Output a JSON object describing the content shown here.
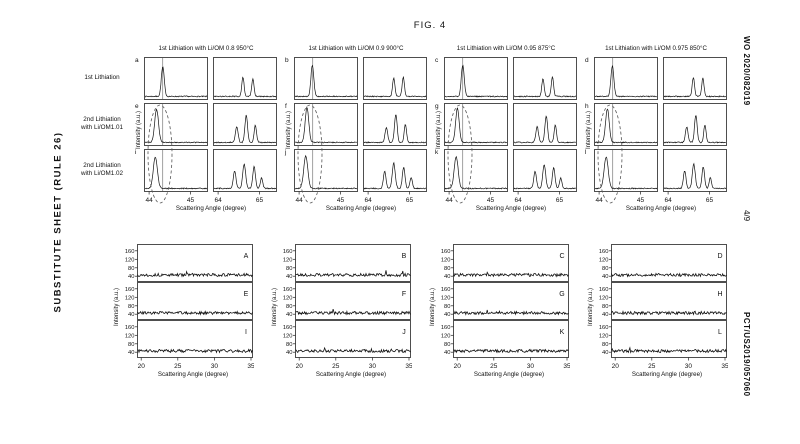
{
  "page": {
    "figure_label": "FIG. 4",
    "left_margin_text": "SUBSTITUTE SHEET (RULE 26)",
    "right_margin_top": "WO 2020/082019",
    "right_margin_middle": "4/9",
    "right_margin_bottom": "PCT/US2019/057060"
  },
  "chart_data": {
    "top": {
      "type": "line",
      "description": "XRD scattering patterns: 4 synthesis-condition groups, each with 3 lithiation rows and two angle windows (44-45 and 64-65 degrees). Dashed ellipse highlights shifted peak in 2nd lithiation rows.",
      "xlabel": "Scattering Angle (degree)",
      "ylabel": "Intensity (a.u.)",
      "row_labels": [
        "1st Lithiation",
        "2nd Lithiation with Li/OM1.01",
        "2nd Lithiation with Li/OM1.02"
      ],
      "left_xlim": [
        43.9,
        45.4
      ],
      "right_xlim": [
        63.9,
        65.4
      ],
      "left_xticks": [
        44,
        45
      ],
      "right_xticks": [
        64,
        65
      ],
      "ref_line_x": 44.33,
      "groups": [
        {
          "title": "1st Lithiation with Li/OM 0.8 950°C",
          "rows": [
            {
              "letter": "a",
              "left_peaks": [
                [
                  44.33,
                  0.85,
                  0.05
                ]
              ],
              "right_peaks": [
                [
                  64.6,
                  0.55,
                  0.04
                ],
                [
                  64.84,
                  0.5,
                  0.04
                ]
              ]
            },
            {
              "letter": "e",
              "left_peaks": [
                [
                  44.18,
                  0.95,
                  0.065
                ]
              ],
              "right_peaks": [
                [
                  64.45,
                  0.45,
                  0.045
                ],
                [
                  64.68,
                  0.78,
                  0.045
                ],
                [
                  64.9,
                  0.5,
                  0.04
                ]
              ]
            },
            {
              "letter": "i",
              "left_peaks": [
                [
                  44.15,
                  0.9,
                  0.07
                ]
              ],
              "right_peaks": [
                [
                  64.4,
                  0.5,
                  0.045
                ],
                [
                  64.63,
                  0.7,
                  0.05
                ],
                [
                  64.87,
                  0.62,
                  0.045
                ],
                [
                  65.05,
                  0.3,
                  0.04
                ]
              ]
            }
          ]
        },
        {
          "title": "1st Lithiation with Li/OM 0.9 900°C",
          "rows": [
            {
              "letter": "b",
              "left_peaks": [
                [
                  44.32,
                  0.88,
                  0.05
                ]
              ],
              "right_peaks": [
                [
                  64.62,
                  0.52,
                  0.04
                ],
                [
                  64.85,
                  0.55,
                  0.04
                ]
              ]
            },
            {
              "letter": "f",
              "left_peaks": [
                [
                  44.19,
                  1.0,
                  0.06
                ]
              ],
              "right_peaks": [
                [
                  64.44,
                  0.42,
                  0.045
                ],
                [
                  64.67,
                  0.8,
                  0.045
                ],
                [
                  64.9,
                  0.52,
                  0.04
                ]
              ]
            },
            {
              "letter": "j",
              "left_peaks": [
                [
                  44.16,
                  0.92,
                  0.07
                ]
              ],
              "right_peaks": [
                [
                  64.4,
                  0.48,
                  0.045
                ],
                [
                  64.62,
                  0.72,
                  0.05
                ],
                [
                  64.86,
                  0.6,
                  0.045
                ],
                [
                  65.04,
                  0.32,
                  0.04
                ]
              ]
            }
          ]
        },
        {
          "title": "1st Lithiation with Li/OM 0.95 875°C",
          "rows": [
            {
              "letter": "c",
              "left_peaks": [
                [
                  44.33,
                  0.9,
                  0.05
                ]
              ],
              "right_peaks": [
                [
                  64.6,
                  0.5,
                  0.04
                ],
                [
                  64.83,
                  0.55,
                  0.04
                ]
              ]
            },
            {
              "letter": "g",
              "left_peaks": [
                [
                  44.2,
                  0.98,
                  0.06
                ]
              ],
              "right_peaks": [
                [
                  64.46,
                  0.45,
                  0.045
                ],
                [
                  64.68,
                  0.76,
                  0.045
                ],
                [
                  64.9,
                  0.5,
                  0.04
                ]
              ]
            },
            {
              "letter": "k",
              "left_peaks": [
                [
                  44.17,
                  0.9,
                  0.068
                ]
              ],
              "right_peaks": [
                [
                  64.41,
                  0.5,
                  0.045
                ],
                [
                  64.63,
                  0.68,
                  0.05
                ],
                [
                  64.86,
                  0.6,
                  0.045
                ],
                [
                  65.03,
                  0.3,
                  0.04
                ]
              ]
            }
          ]
        },
        {
          "title": "1st Lithiation with Li/OM 0.975 850°C",
          "rows": [
            {
              "letter": "d",
              "left_peaks": [
                [
                  44.32,
                  0.87,
                  0.05
                ]
              ],
              "right_peaks": [
                [
                  64.61,
                  0.54,
                  0.04
                ],
                [
                  64.84,
                  0.52,
                  0.04
                ]
              ]
            },
            {
              "letter": "h",
              "left_peaks": [
                [
                  44.2,
                  0.96,
                  0.062
                ]
              ],
              "right_peaks": [
                [
                  64.45,
                  0.44,
                  0.045
                ],
                [
                  64.67,
                  0.78,
                  0.045
                ],
                [
                  64.89,
                  0.5,
                  0.04
                ]
              ]
            },
            {
              "letter": "l",
              "left_peaks": [
                [
                  44.17,
                  0.9,
                  0.07
                ]
              ],
              "right_peaks": [
                [
                  64.4,
                  0.5,
                  0.045
                ],
                [
                  64.62,
                  0.7,
                  0.05
                ],
                [
                  64.85,
                  0.62,
                  0.045
                ],
                [
                  65.02,
                  0.3,
                  0.04
                ]
              ]
            }
          ]
        }
      ]
    },
    "bottom": {
      "type": "line",
      "description": "Low-angle scattering traces (flat noisy amorphous background), 4 panels each with 3 stacked traces.",
      "xlabel": "Scattering Angle (degree)",
      "ylabel": "Intensity (a.u.)",
      "xlim": [
        19.5,
        35.2
      ],
      "xticks": [
        20,
        25,
        30,
        35
      ],
      "ylim": [
        15,
        190
      ],
      "yticks": [
        40,
        80,
        120,
        160
      ],
      "baseline": 46,
      "noise": 7,
      "panels": [
        {
          "letters": [
            "A",
            "E",
            "I"
          ]
        },
        {
          "letters": [
            "B",
            "F",
            "J"
          ]
        },
        {
          "letters": [
            "C",
            "G",
            "K"
          ]
        },
        {
          "letters": [
            "D",
            "H",
            "L"
          ]
        }
      ]
    }
  }
}
